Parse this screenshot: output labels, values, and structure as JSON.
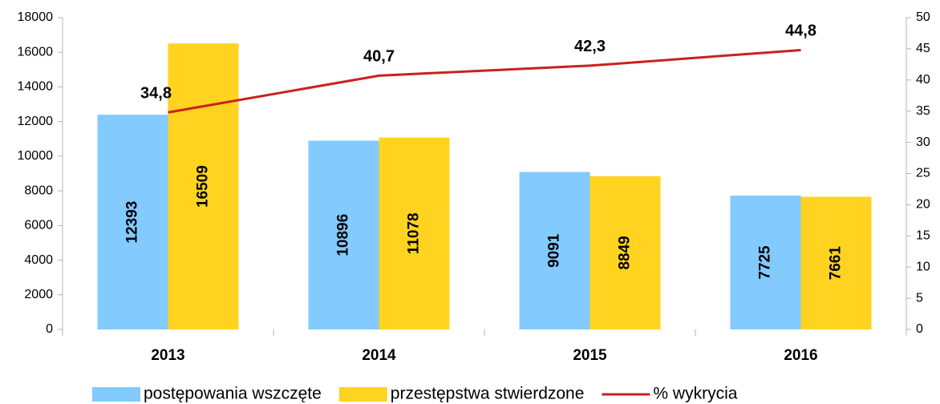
{
  "chart_data": {
    "type": "bar",
    "categories": [
      "2013",
      "2014",
      "2015",
      "2016"
    ],
    "series": [
      {
        "name": "postępowania wszczęte",
        "color": "#83caff",
        "values": [
          12393,
          10896,
          9091,
          7725
        ]
      },
      {
        "name": "przestępstwa stwierdzone",
        "color": "#ffd320",
        "values": [
          16509,
          11078,
          8849,
          7661
        ]
      },
      {
        "name": "% wykrycia",
        "color": "#c9211e",
        "type": "line",
        "axis": "y2",
        "values": [
          34.8,
          40.7,
          42.3,
          44.8
        ],
        "value_labels": [
          "34,8",
          "40,7",
          "42,3",
          "44,8"
        ]
      }
    ],
    "ylim": [
      0,
      18000
    ],
    "yticks": [
      0,
      2000,
      4000,
      6000,
      8000,
      10000,
      12000,
      14000,
      16000,
      18000
    ],
    "y2lim": [
      0,
      50
    ],
    "y2ticks": [
      0,
      5,
      10,
      15,
      20,
      25,
      30,
      35,
      40,
      45,
      50
    ],
    "legend": "bottom"
  }
}
